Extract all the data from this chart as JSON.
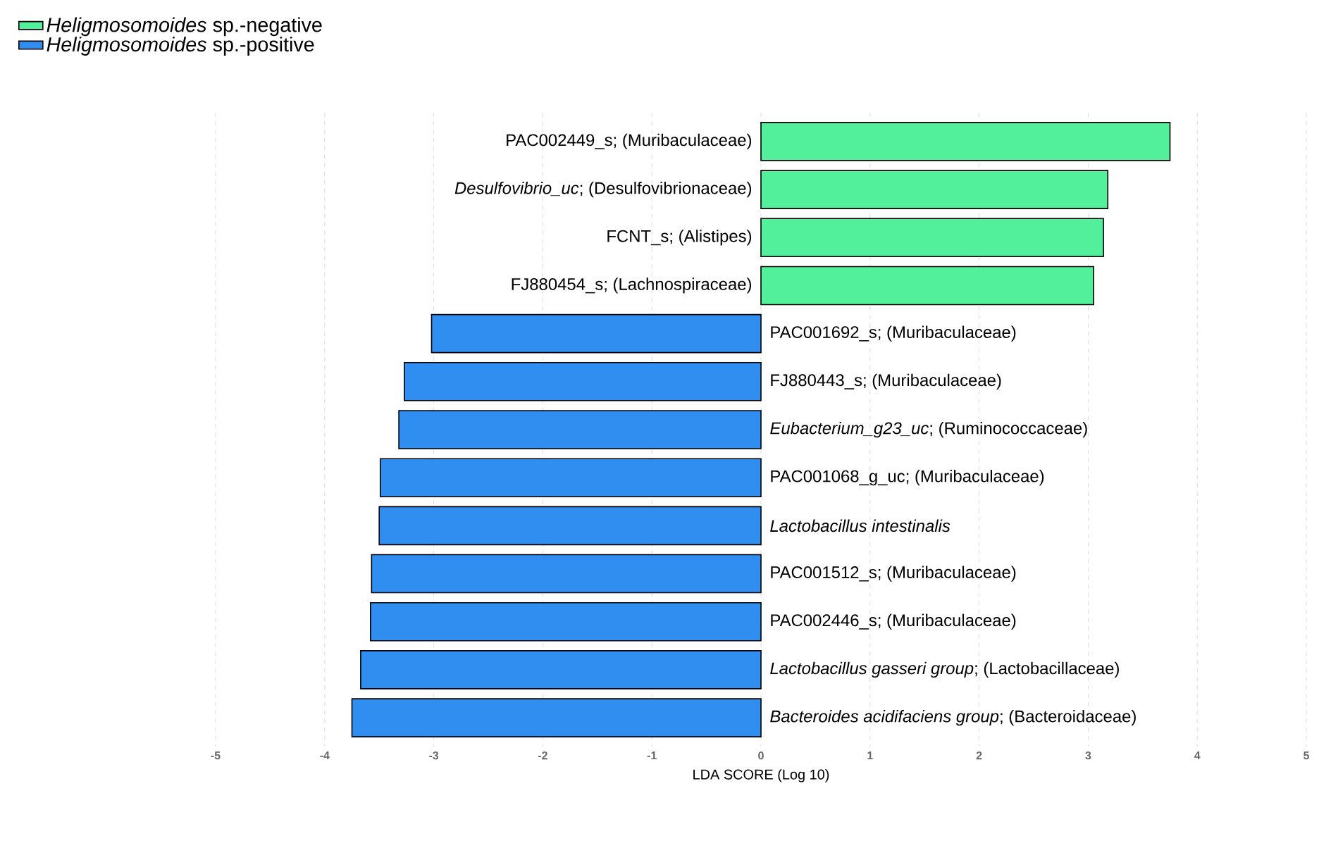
{
  "chart_data": {
    "type": "bar",
    "orientation": "horizontal",
    "xlabel": "LDA SCORE (Log 10)",
    "categories": [
      "PAC002449_s; (Muribaculaceae)",
      "*Desulfovibrio_uc*; (Desulfovibrionaceae)",
      "FCNT_s; (Alistipes)",
      "FJ880454_s; (Lachnospiraceae)",
      "PAC001692_s; (Muribaculaceae)",
      "FJ880443_s; (Muribaculaceae)",
      "*Eubacterium_g23_uc*; (Ruminococcaceae)",
      "PAC001068_g_uc; (Muribaculaceae)",
      "*Lactobacillus intestinalis*",
      "PAC001512_s; (Muribaculaceae)",
      "PAC002446_s; (Muribaculaceae)",
      "*Lactobacillus gasseri group*; (Lactobacillaceae)",
      "*Bacteroides acidifaciens group*; (Bacteroidaceae)"
    ],
    "series": [
      {
        "name": "*Heligmosomoides* sp.-negative",
        "color": "#52f09b",
        "values": [
          3.75,
          3.18,
          3.14,
          3.05,
          null,
          null,
          null,
          null,
          null,
          null,
          null,
          null,
          null
        ]
      },
      {
        "name": "*Heligmosomoides* sp.-positive",
        "color": "#2f8ef0",
        "values": [
          null,
          null,
          null,
          null,
          -3.02,
          -3.27,
          -3.32,
          -3.49,
          -3.5,
          -3.57,
          -3.58,
          -3.67,
          -3.75
        ]
      }
    ],
    "xlim": [
      -5,
      5
    ],
    "xticks": [
      -5,
      -4,
      -3,
      -2,
      -1,
      0,
      1,
      2,
      3,
      4,
      5
    ],
    "grid": "x",
    "legend": "top left"
  }
}
